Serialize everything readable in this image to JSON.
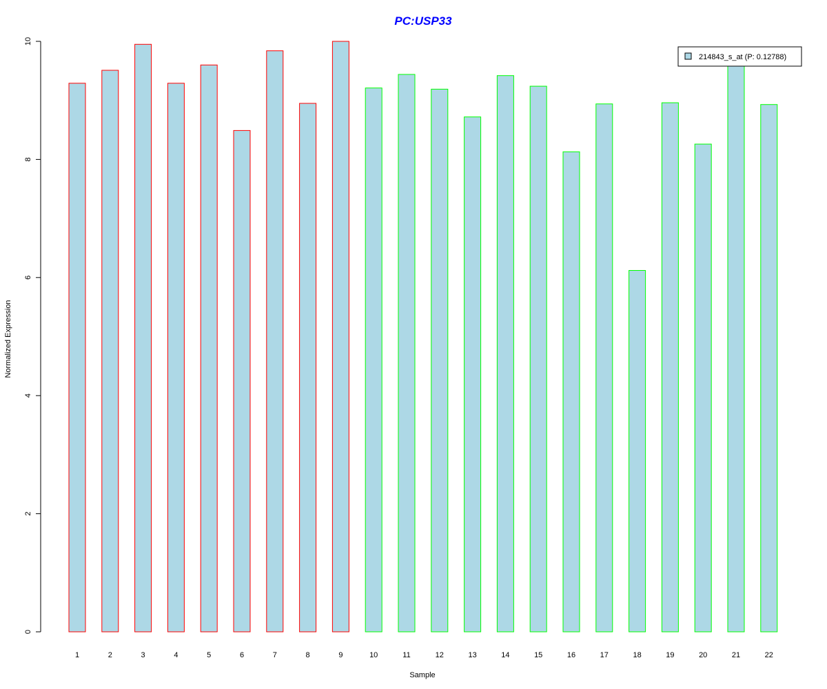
{
  "chart_data": {
    "type": "bar",
    "title": "PC:USP33",
    "xlabel": "Sample",
    "ylabel": "Normalized Expression",
    "ylim": [
      0,
      10
    ],
    "yticks": [
      "0",
      "2",
      "4",
      "6",
      "8",
      "10"
    ],
    "categories": [
      "1",
      "2",
      "3",
      "4",
      "5",
      "6",
      "7",
      "8",
      "9",
      "10",
      "11",
      "12",
      "13",
      "14",
      "15",
      "16",
      "17",
      "18",
      "19",
      "20",
      "21",
      "22"
    ],
    "series": [
      {
        "name": "214843_s_at (P: 0.12788)",
        "values": [
          9.29,
          9.51,
          9.95,
          9.29,
          9.6,
          8.49,
          9.84,
          8.95,
          10.0,
          9.21,
          9.44,
          9.19,
          8.72,
          9.42,
          9.24,
          8.13,
          8.94,
          6.12,
          8.96,
          8.26,
          9.62,
          8.93
        ]
      }
    ],
    "groups": [
      "red",
      "red",
      "red",
      "red",
      "red",
      "red",
      "red",
      "red",
      "red",
      "green",
      "green",
      "green",
      "green",
      "green",
      "green",
      "green",
      "green",
      "green",
      "green",
      "green",
      "green",
      "green"
    ],
    "legend_position": "top-right",
    "grid": false,
    "colors": {
      "bar_fill": "#ADD8E6",
      "border_red": "#FF0000",
      "border_green": "#00FF00",
      "title": "#0000FF",
      "axis": "#000000"
    }
  }
}
